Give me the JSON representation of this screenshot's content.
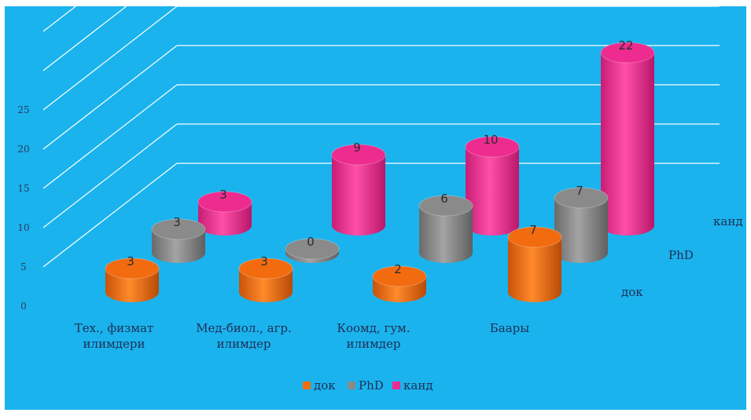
{
  "chart_data": {
    "type": "bar",
    "style": "3d-cylinder",
    "categories": [
      "Тех., физмат илимдери",
      "Мед-биол., агр. илимдер",
      "Коомд, гум. илимдер",
      "Баары"
    ],
    "series": [
      {
        "name": "док",
        "values": [
          3,
          3,
          2,
          7
        ],
        "color": "#f26b0f"
      },
      {
        "name": "PhD",
        "values": [
          3,
          0,
          6,
          7
        ],
        "color": "#8a8a8a"
      },
      {
        "name": "канд",
        "values": [
          3,
          9,
          10,
          22
        ],
        "color": "#ee2b8f"
      }
    ],
    "y_ticks": [
      "0",
      "5",
      "10",
      "15",
      "20",
      "25"
    ],
    "ylim": [
      0,
      25
    ],
    "title": "",
    "xlabel": "",
    "ylabel": "",
    "grid": true,
    "legend_position": "bottom",
    "background_color": "#1ab3ee"
  }
}
